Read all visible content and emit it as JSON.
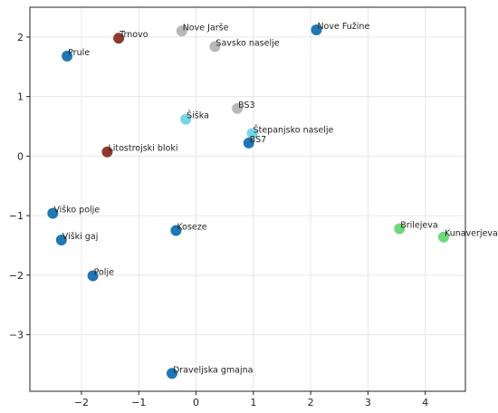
{
  "chart_data": {
    "type": "scatter",
    "xlim": [
      -2.9,
      4.7
    ],
    "ylim": [
      -3.95,
      2.5
    ],
    "xticks": [
      -2,
      -1,
      0,
      1,
      2,
      3,
      4
    ],
    "yticks": [
      -3,
      -2,
      -1,
      0,
      1,
      2
    ],
    "grid": true,
    "colors": {
      "blue": "#1f77b4",
      "brown": "#8c3a2e",
      "gray": "#b8b8b8",
      "cyan": "#76d6e6",
      "green": "#6fd97a"
    },
    "points": [
      {
        "label": "Nove Jarše",
        "x": -0.25,
        "y": 2.1,
        "color": "gray"
      },
      {
        "label": "Nove Fužine",
        "x": 2.1,
        "y": 2.12,
        "color": "blue"
      },
      {
        "label": "Trnovo",
        "x": -1.35,
        "y": 1.98,
        "color": "brown"
      },
      {
        "label": "Savsko naselje",
        "x": 0.33,
        "y": 1.84,
        "color": "gray"
      },
      {
        "label": "Prule",
        "x": -2.25,
        "y": 1.68,
        "color": "blue"
      },
      {
        "label": "BS3",
        "x": 0.72,
        "y": 0.8,
        "color": "gray"
      },
      {
        "label": "Šiška",
        "x": -0.18,
        "y": 0.62,
        "color": "cyan"
      },
      {
        "label": "Štepanjsko naselje",
        "x": 0.98,
        "y": 0.38,
        "color": "cyan"
      },
      {
        "label": "BS7",
        "x": 0.92,
        "y": 0.22,
        "color": "blue"
      },
      {
        "label": "Litostrojski bloki",
        "x": -1.55,
        "y": 0.07,
        "color": "brown"
      },
      {
        "label": "Viško polje",
        "x": -2.5,
        "y": -0.96,
        "color": "blue"
      },
      {
        "label": "Koseze",
        "x": -0.35,
        "y": -1.25,
        "color": "blue"
      },
      {
        "label": "Brilejeva",
        "x": 3.55,
        "y": -1.22,
        "color": "green"
      },
      {
        "label": "Kunaverjeva",
        "x": 4.32,
        "y": -1.36,
        "color": "green"
      },
      {
        "label": "Viški gaj",
        "x": -2.35,
        "y": -1.41,
        "color": "blue"
      },
      {
        "label": "Polje",
        "x": -1.8,
        "y": -2.01,
        "color": "blue"
      },
      {
        "label": "Draveljska gmajna",
        "x": -0.42,
        "y": -3.65,
        "color": "blue"
      }
    ]
  }
}
